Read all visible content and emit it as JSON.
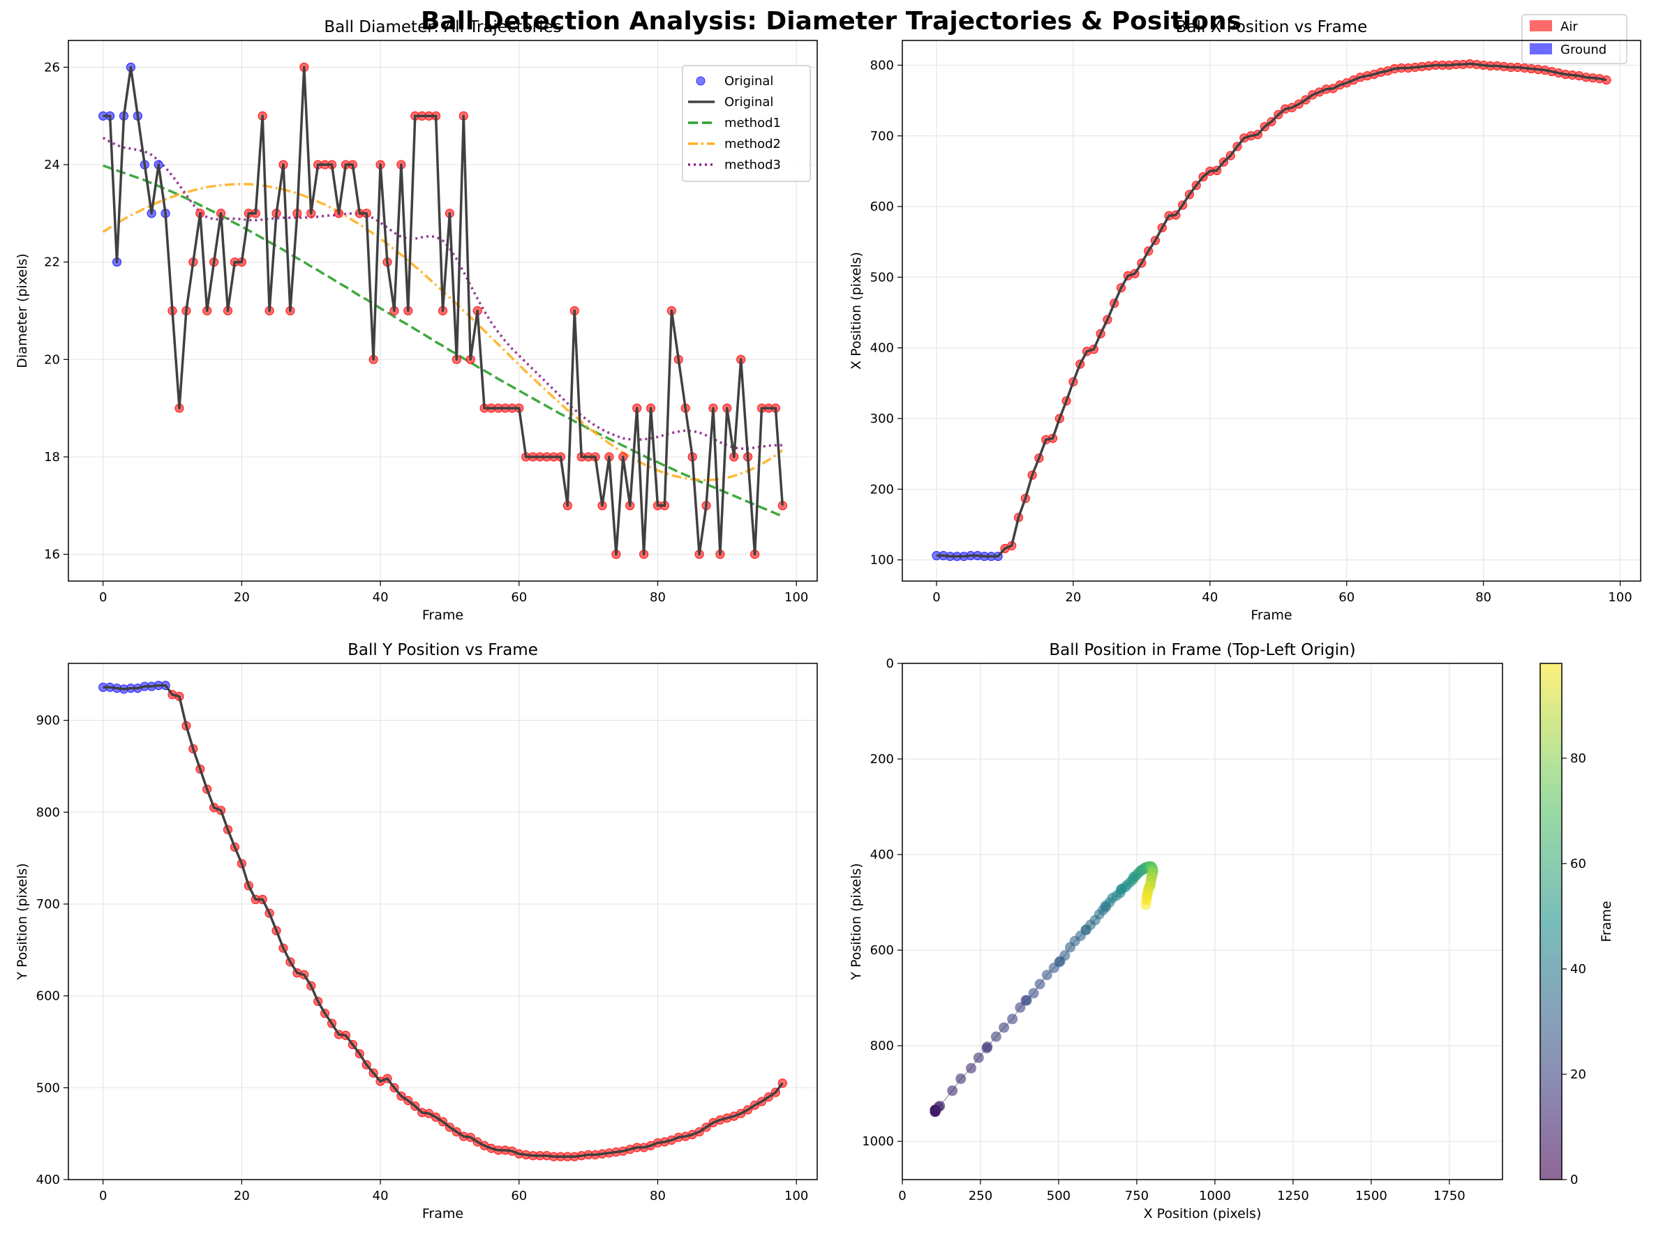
{
  "suptitle": "Ball Detection Analysis: Diameter Trajectories & Positions",
  "figure_legend": [
    {
      "label": "Air",
      "color": "#ff6b6b"
    },
    {
      "label": "Ground",
      "color": "#6b6bff"
    }
  ],
  "colors": {
    "ground": "#3333ff",
    "air": "#ff2222",
    "original_line": "#404040",
    "method1": "#2ca02c",
    "method2": "#ffb020",
    "method3": "#882288"
  },
  "chart_data": [
    {
      "type": "line",
      "title": "Ball Diameter: All Trajectories",
      "xlabel": "Frame",
      "ylabel": "Diameter (pixels)",
      "xlim": [
        -5,
        103
      ],
      "ylim": [
        15.45,
        26.55
      ],
      "xticks": [
        0,
        20,
        40,
        60,
        80,
        100
      ],
      "yticks": [
        16,
        18,
        20,
        22,
        24,
        26
      ],
      "grid": true,
      "legend_position": "top-right",
      "ground_frames": 10,
      "legend": [
        {
          "label": "Original",
          "kind": "marker",
          "color": "#3333ff"
        },
        {
          "label": "Original",
          "kind": "line",
          "color": "#404040",
          "dash": ""
        },
        {
          "label": "method1",
          "kind": "line",
          "color": "#2ca02c",
          "dash": "14,6"
        },
        {
          "label": "method2",
          "kind": "line",
          "color": "#ffb020",
          "dash": "14,5,3,5"
        },
        {
          "label": "method3",
          "kind": "line",
          "color": "#882288",
          "dash": "3,5"
        }
      ],
      "series": [
        {
          "name": "Original",
          "values": [
            25,
            25,
            22,
            25,
            26,
            25,
            24,
            23,
            24,
            23,
            21,
            19,
            21,
            22,
            23,
            21,
            22,
            23,
            21,
            22,
            22,
            23,
            23,
            25,
            21,
            23,
            24,
            21,
            23,
            26,
            23,
            24,
            24,
            24,
            23,
            24,
            24,
            23,
            23,
            20,
            24,
            22,
            21,
            24,
            21,
            25,
            25,
            25,
            25,
            21,
            23,
            20,
            25,
            20,
            21,
            19,
            19,
            19,
            19,
            19,
            19,
            18,
            18,
            18,
            18,
            18,
            18,
            17,
            21,
            18,
            18,
            18,
            17,
            18,
            16,
            18,
            17,
            19,
            16,
            19,
            17,
            17,
            21,
            20,
            19,
            18,
            16,
            17,
            19,
            16,
            19,
            18,
            20,
            18,
            16,
            19,
            19,
            19,
            17
          ]
        },
        {
          "name": "method1",
          "values": [
            23.98,
            23.93,
            23.88,
            23.83,
            23.78,
            23.73,
            23.68,
            23.62,
            23.56,
            23.5,
            23.44,
            23.37,
            23.31,
            23.24,
            23.17,
            23.1,
            23.03,
            22.96,
            22.88,
            22.8,
            22.73,
            22.65,
            22.57,
            22.49,
            22.41,
            22.33,
            22.25,
            22.16,
            22.08,
            22.0,
            21.91,
            21.83,
            21.74,
            21.66,
            21.57,
            21.49,
            21.4,
            21.31,
            21.23,
            21.14,
            21.05,
            20.97,
            20.88,
            20.79,
            20.71,
            20.62,
            20.54,
            20.45,
            20.36,
            20.28,
            20.19,
            20.11,
            20.02,
            19.94,
            19.85,
            19.77,
            19.69,
            19.6,
            19.52,
            19.44,
            19.36,
            19.28,
            19.2,
            19.12,
            19.04,
            18.96,
            18.88,
            18.81,
            18.73,
            18.66,
            18.58,
            18.51,
            18.44,
            18.37,
            18.3,
            18.23,
            18.16,
            18.09,
            18.02,
            17.95,
            17.89,
            17.82,
            17.76,
            17.69,
            17.63,
            17.57,
            17.5,
            17.44,
            17.38,
            17.32,
            17.26,
            17.2,
            17.14,
            17.08,
            17.02,
            16.96,
            16.9,
            16.84,
            16.78
          ]
        },
        {
          "name": "method2",
          "values": [
            22.62,
            22.71,
            22.79,
            22.88,
            22.96,
            23.03,
            23.1,
            23.17,
            23.23,
            23.29,
            23.34,
            23.39,
            23.43,
            23.47,
            23.51,
            23.54,
            23.56,
            23.58,
            23.59,
            23.6,
            23.6,
            23.6,
            23.59,
            23.57,
            23.55,
            23.52,
            23.49,
            23.45,
            23.41,
            23.36,
            23.3,
            23.24,
            23.18,
            23.11,
            23.03,
            22.95,
            22.86,
            22.77,
            22.68,
            22.58,
            22.48,
            22.37,
            22.26,
            22.15,
            22.03,
            21.91,
            21.79,
            21.66,
            21.53,
            21.4,
            21.27,
            21.14,
            21.0,
            20.87,
            20.73,
            20.59,
            20.45,
            20.31,
            20.17,
            20.03,
            19.89,
            19.75,
            19.62,
            19.48,
            19.35,
            19.22,
            19.09,
            18.96,
            18.84,
            18.72,
            18.6,
            18.49,
            18.38,
            18.28,
            18.18,
            18.09,
            18.0,
            17.92,
            17.85,
            17.78,
            17.72,
            17.67,
            17.62,
            17.59,
            17.56,
            17.54,
            17.53,
            17.52,
            17.53,
            17.55,
            17.57,
            17.61,
            17.66,
            17.71,
            17.78,
            17.85,
            17.94,
            18.03,
            18.14
          ]
        },
        {
          "name": "method3",
          "values": [
            24.55,
            24.47,
            24.4,
            24.35,
            24.33,
            24.3,
            24.27,
            24.2,
            24.09,
            23.94,
            23.77,
            23.58,
            23.38,
            23.18,
            23.02,
            22.92,
            22.88,
            22.88,
            22.89,
            22.89,
            22.88,
            22.86,
            22.86,
            22.87,
            22.89,
            22.9,
            22.91,
            22.91,
            22.91,
            22.91,
            22.92,
            22.93,
            22.95,
            22.96,
            22.97,
            22.99,
            23.0,
            22.99,
            22.96,
            22.9,
            22.81,
            22.71,
            22.6,
            22.52,
            22.48,
            22.48,
            22.51,
            22.53,
            22.52,
            22.44,
            22.28,
            22.06,
            21.8,
            21.52,
            21.25,
            20.99,
            20.76,
            20.56,
            20.38,
            20.22,
            20.08,
            19.94,
            19.8,
            19.66,
            19.52,
            19.38,
            19.24,
            19.1,
            18.97,
            18.85,
            18.74,
            18.64,
            18.56,
            18.49,
            18.43,
            18.38,
            18.36,
            18.35,
            18.36,
            18.38,
            18.41,
            18.45,
            18.49,
            18.52,
            18.54,
            18.53,
            18.5,
            18.44,
            18.37,
            18.3,
            18.24,
            18.19,
            18.17,
            18.17,
            18.19,
            18.21,
            18.23,
            18.24,
            18.24
          ]
        }
      ]
    },
    {
      "type": "line",
      "title": "Ball X Position vs Frame",
      "xlabel": "Frame",
      "ylabel": "X Position (pixels)",
      "xlim": [
        -5,
        103
      ],
      "ylim": [
        70,
        835
      ],
      "xticks": [
        0,
        20,
        40,
        60,
        80,
        100
      ],
      "yticks": [
        100,
        200,
        300,
        400,
        500,
        600,
        700,
        800
      ],
      "grid": true,
      "ground_frames": 10,
      "series": [
        {
          "name": "X Position",
          "values": [
            106,
            106,
            105,
            105,
            105,
            106,
            106,
            105,
            105,
            105,
            116,
            120,
            160,
            187,
            220,
            244,
            270,
            272,
            300,
            325,
            352,
            377,
            395,
            398,
            420,
            440,
            463,
            485,
            502,
            505,
            520,
            537,
            552,
            570,
            587,
            588,
            602,
            617,
            630,
            642,
            650,
            651,
            663,
            672,
            685,
            697,
            700,
            702,
            713,
            720,
            730,
            738,
            740,
            745,
            751,
            758,
            762,
            766,
            767,
            772,
            775,
            779,
            783,
            785,
            787,
            790,
            792,
            795,
            796,
            796,
            797,
            798,
            799,
            800,
            800,
            800,
            801,
            801,
            802,
            801,
            800,
            799,
            799,
            798,
            797,
            797,
            796,
            795,
            794,
            793,
            791,
            789,
            787,
            786,
            785,
            783,
            782,
            781,
            779
          ]
        }
      ]
    },
    {
      "type": "line",
      "title": "Ball Y Position vs Frame",
      "xlabel": "Frame",
      "ylabel": "Y Position (pixels)",
      "xlim": [
        -5,
        103
      ],
      "ylim": [
        400,
        962
      ],
      "xticks": [
        0,
        20,
        40,
        60,
        80,
        100
      ],
      "yticks": [
        400,
        500,
        600,
        700,
        800,
        900
      ],
      "grid": true,
      "ground_frames": 10,
      "series": [
        {
          "name": "Y Position",
          "values": [
            936,
            936,
            935,
            934,
            935,
            935,
            937,
            937,
            938,
            938,
            928,
            926,
            894,
            869,
            847,
            825,
            805,
            802,
            781,
            762,
            744,
            720,
            705,
            705,
            690,
            671,
            652,
            637,
            625,
            623,
            611,
            594,
            581,
            570,
            558,
            557,
            547,
            537,
            525,
            516,
            507,
            510,
            500,
            491,
            486,
            480,
            473,
            472,
            468,
            463,
            457,
            452,
            447,
            446,
            441,
            437,
            434,
            432,
            432,
            431,
            428,
            427,
            426,
            426,
            426,
            425,
            425,
            425,
            425,
            426,
            427,
            427,
            428,
            429,
            430,
            431,
            433,
            435,
            435,
            437,
            440,
            441,
            443,
            446,
            447,
            449,
            452,
            457,
            462,
            465,
            467,
            469,
            472,
            476,
            481,
            485,
            490,
            495,
            505
          ]
        }
      ]
    },
    {
      "type": "scatter",
      "title": "Ball Position in Frame (Top-Left Origin)",
      "xlabel": "X Position (pixels)",
      "ylabel": "Y Position (pixels)",
      "xlim": [
        0,
        1920
      ],
      "ylim": [
        1080,
        0
      ],
      "xticks": [
        0,
        250,
        500,
        750,
        1000,
        1250,
        1500,
        1750
      ],
      "yticks": [
        0,
        200,
        400,
        600,
        800,
        1000
      ],
      "grid": true,
      "colorbar": {
        "label": "Frame",
        "range": [
          0,
          98
        ],
        "ticks": [
          0,
          20,
          40,
          60,
          80
        ]
      },
      "color_by": "frame"
    }
  ]
}
